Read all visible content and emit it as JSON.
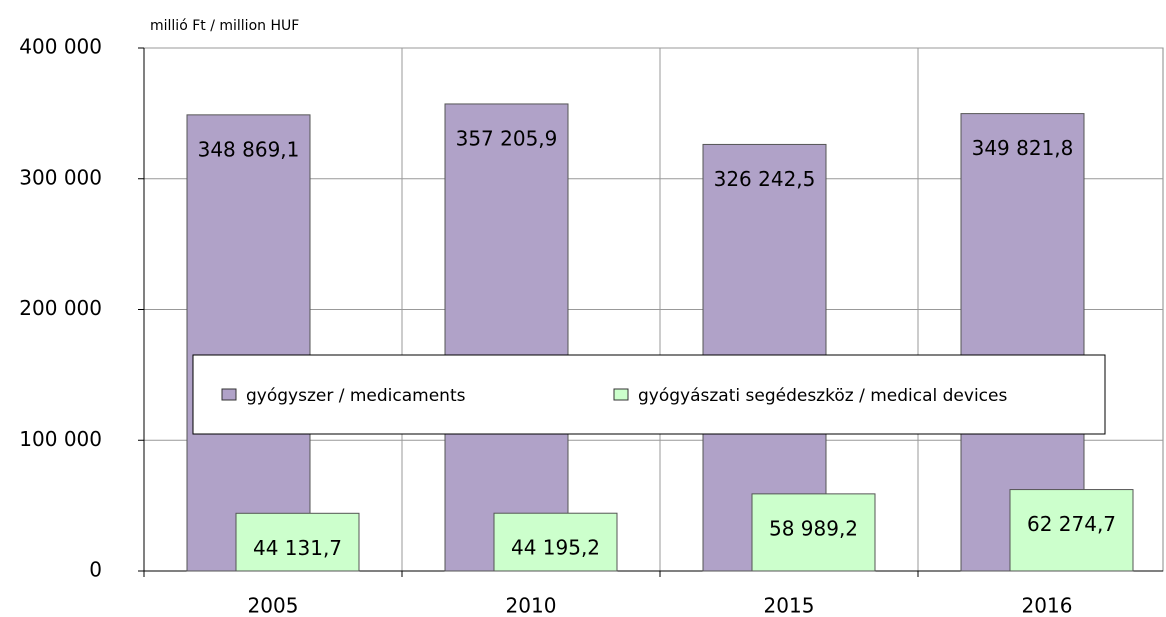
{
  "chart_data": {
    "type": "bar",
    "y_label": "millió Ft / million HUF",
    "categories": [
      "2005",
      "2010",
      "2015",
      "2016"
    ],
    "series": [
      {
        "name": "gyógyszer / medicaments",
        "color": "#b0a2c8",
        "values": [
          348869.1,
          357205.9,
          326242.5,
          349821.8
        ],
        "value_labels": [
          "348 869,1",
          "357 205,9",
          "326 242,5",
          "349 821,8"
        ]
      },
      {
        "name": "gyógyászati segédeszköz / medical devices",
        "color": "#ccffcc",
        "values": [
          44131.7,
          44195.2,
          58989.2,
          62274.7
        ],
        "value_labels": [
          "44 131,7",
          "44 195,2",
          "58 989,2",
          "62 274,7"
        ]
      }
    ],
    "ylim": [
      0,
      400000
    ],
    "yticks": [
      0,
      {
        "value": 100000,
        "label": "100 000"
      },
      {
        "value": 200000,
        "label": "200 000"
      },
      {
        "value": 300000,
        "label": "300 000"
      },
      {
        "value": 400000,
        "label": "400 000"
      }
    ],
    "grid": true
  }
}
